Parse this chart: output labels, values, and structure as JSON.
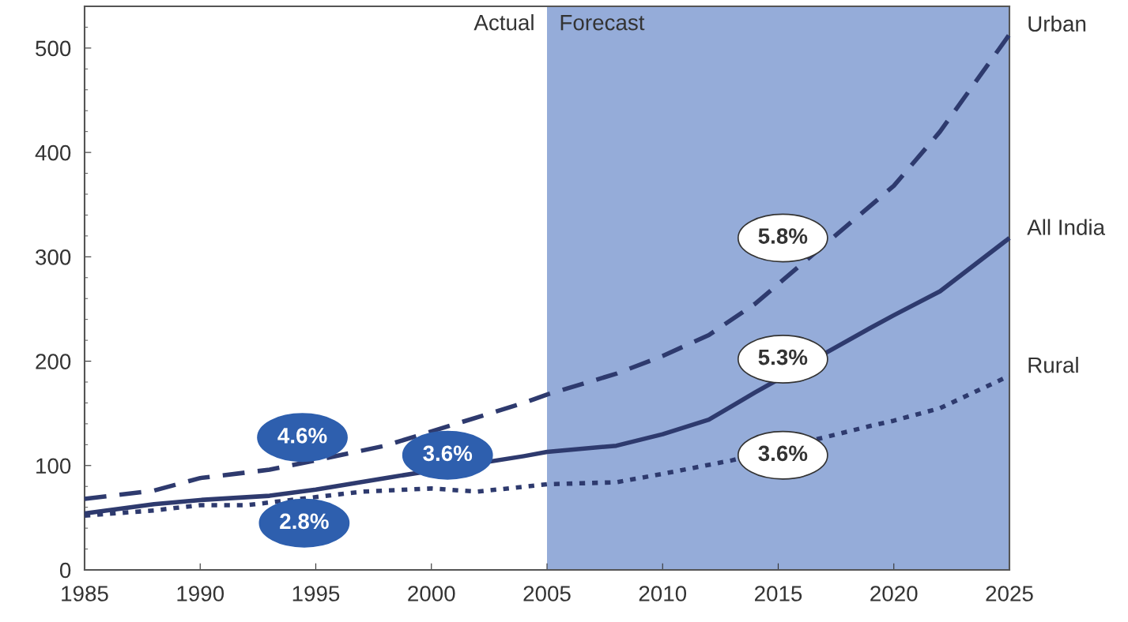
{
  "chart_data": {
    "type": "line",
    "series": [
      {
        "name": "Urban",
        "color": "#2e3a6e",
        "line_style": "dashed",
        "x": [
          1985,
          1988,
          1990,
          1993,
          1995,
          1998,
          2004,
          2005,
          2008,
          2010,
          2012,
          2014,
          2020,
          2022,
          2025
        ],
        "values": [
          68,
          76,
          88,
          96,
          105,
          119,
          160,
          168,
          188,
          205,
          225,
          255,
          368,
          420,
          513
        ]
      },
      {
        "name": "All India",
        "color": "#2e3a6e",
        "line_style": "solid",
        "x": [
          1985,
          1988,
          1990,
          1993,
          1995,
          1998,
          2004,
          2005,
          2008,
          2010,
          2012,
          2014,
          2019,
          2020,
          2022,
          2025
        ],
        "values": [
          54,
          63,
          67,
          71,
          77,
          88,
          109,
          113,
          119,
          130,
          144,
          170,
          232,
          244,
          267,
          318
        ]
      },
      {
        "name": "Rural",
        "color": "#2e3a6e",
        "line_style": "dotted",
        "x": [
          1985,
          1988,
          1990,
          1992,
          1997,
          2000,
          2002,
          2005,
          2008,
          2010,
          2013,
          2019,
          2020,
          2022,
          2025
        ],
        "values": [
          52,
          57,
          62,
          62,
          75,
          78,
          75,
          82,
          84,
          92,
          105,
          138,
          143,
          155,
          186
        ]
      }
    ],
    "xlim": [
      1985,
      2025
    ],
    "xticks": [
      1985,
      1990,
      1995,
      2000,
      2005,
      2010,
      2015,
      2020,
      2025
    ],
    "ylim": [
      0,
      540
    ],
    "yticks": [
      0,
      100,
      200,
      300,
      400,
      500
    ],
    "bands": [
      {
        "axis": "x",
        "from": 2005,
        "to": 2025,
        "label": "Forecast",
        "color": "#95acd9"
      }
    ],
    "annotations": [
      "Actual",
      "4.6%",
      "2.8%",
      "3.6%",
      "5.8%",
      "5.3%",
      "3.6%"
    ],
    "grid": false,
    "legend": false
  }
}
